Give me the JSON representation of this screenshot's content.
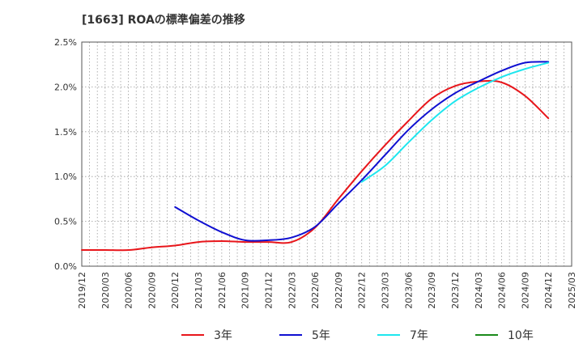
{
  "chart_data": {
    "type": "line",
    "title": "[1663]  ROAの標準偏差の推移",
    "x_ticks": [
      "2019/12",
      "2020/03",
      "2020/06",
      "2020/09",
      "2020/12",
      "2021/03",
      "2021/06",
      "2021/09",
      "2021/12",
      "2022/03",
      "2022/06",
      "2022/09",
      "2022/12",
      "2023/03",
      "2023/06",
      "2023/09",
      "2023/12",
      "2024/03",
      "2024/06",
      "2024/09",
      "2024/12",
      "2025/03"
    ],
    "y_ticks": [
      "0.0%",
      "0.5%",
      "1.0%",
      "1.5%",
      "2.0%",
      "2.5%"
    ],
    "ylim": [
      0,
      2.5
    ],
    "grid": true,
    "legend_position": "bottom",
    "series": [
      {
        "name": "3年",
        "color": "#e8161b",
        "x": [
          "2019/12",
          "2020/03",
          "2020/06",
          "2020/09",
          "2020/12",
          "2021/03",
          "2021/06",
          "2021/09",
          "2021/12",
          "2022/03",
          "2022/06",
          "2022/09",
          "2022/12",
          "2023/03",
          "2023/06",
          "2023/09",
          "2023/12",
          "2024/03",
          "2024/06",
          "2024/09",
          "2024/12"
        ],
        "y": [
          0.18,
          0.18,
          0.18,
          0.21,
          0.23,
          0.27,
          0.28,
          0.27,
          0.27,
          0.27,
          0.43,
          0.75,
          1.06,
          1.35,
          1.62,
          1.87,
          2.01,
          2.06,
          2.05,
          1.9,
          1.65
        ]
      },
      {
        "name": "5年",
        "color": "#0f0fd1",
        "x": [
          "2020/12",
          "2021/03",
          "2021/06",
          "2021/09",
          "2021/12",
          "2022/03",
          "2022/06",
          "2022/09",
          "2022/12",
          "2023/03",
          "2023/06",
          "2023/09",
          "2023/12",
          "2024/03",
          "2024/06",
          "2024/09",
          "2024/12"
        ],
        "y": [
          0.66,
          0.51,
          0.38,
          0.29,
          0.29,
          0.32,
          0.44,
          0.7,
          0.96,
          1.24,
          1.52,
          1.75,
          1.93,
          2.06,
          2.18,
          2.27,
          2.28
        ]
      },
      {
        "name": "7年",
        "color": "#1ee6ee",
        "x": [
          "2022/12",
          "2023/03",
          "2023/06",
          "2023/09",
          "2023/12",
          "2024/03",
          "2024/06",
          "2024/09",
          "2024/12"
        ],
        "y": [
          0.94,
          1.12,
          1.38,
          1.63,
          1.84,
          1.99,
          2.11,
          2.2,
          2.27
        ]
      },
      {
        "name": "10年",
        "color": "#1a8a1a",
        "x": [],
        "y": []
      }
    ]
  }
}
